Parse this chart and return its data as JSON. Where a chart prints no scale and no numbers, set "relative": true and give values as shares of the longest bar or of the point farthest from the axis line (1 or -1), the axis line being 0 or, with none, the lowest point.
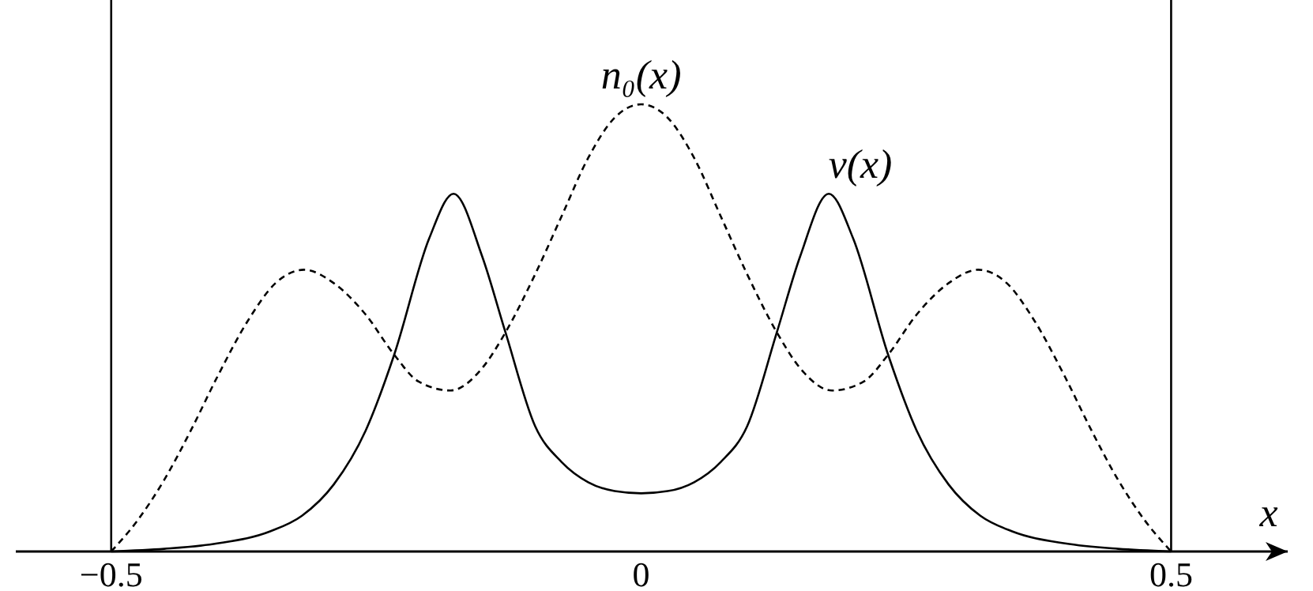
{
  "chart_data": {
    "type": "line",
    "relative": true,
    "xlabel": "x",
    "legend": false,
    "grid": false,
    "xlim": [
      -0.59,
      0.61
    ],
    "xticks": [
      {
        "value": -0.5,
        "label": "−0.5"
      },
      0,
      0.5
    ],
    "ref_lines": [
      {
        "axis": "x",
        "value": -0.5,
        "color": "#000000"
      },
      {
        "axis": "x",
        "value": 0.5,
        "color": "#000000"
      }
    ],
    "series": [
      {
        "name": "n₀(x)",
        "color": "#000000",
        "line_style": "dashed",
        "x": [
          -0.5,
          -0.475,
          -0.45,
          -0.425,
          -0.4,
          -0.37,
          -0.345,
          -0.318,
          -0.29,
          -0.26,
          -0.233,
          -0.21,
          -0.18,
          -0.15,
          -0.128,
          -0.1,
          -0.075,
          -0.05,
          -0.025,
          0,
          0.025,
          0.05,
          0.075,
          0.1,
          0.128,
          0.15,
          0.18,
          0.21,
          0.233,
          0.26,
          0.29,
          0.318,
          0.345,
          0.37,
          0.4,
          0.425,
          0.45,
          0.475,
          0.5
        ],
        "values": [
          0,
          0.07,
          0.16,
          0.27,
          0.39,
          0.52,
          0.6,
          0.63,
          0.6,
          0.53,
          0.44,
          0.38,
          0.36,
          0.41,
          0.49,
          0.62,
          0.75,
          0.88,
          0.97,
          1,
          0.97,
          0.88,
          0.75,
          0.62,
          0.49,
          0.41,
          0.36,
          0.38,
          0.44,
          0.53,
          0.6,
          0.63,
          0.6,
          0.52,
          0.39,
          0.27,
          0.16,
          0.07,
          0
        ]
      },
      {
        "name": "v(x)",
        "color": "#000000",
        "line_style": "solid",
        "x": [
          -0.5,
          -0.45,
          -0.4,
          -0.35,
          -0.32,
          -0.29,
          -0.26,
          -0.233,
          -0.2,
          -0.177,
          -0.15,
          -0.128,
          -0.1,
          -0.075,
          -0.05,
          -0.025,
          0,
          0.025,
          0.05,
          0.075,
          0.1,
          0.128,
          0.15,
          0.177,
          0.2,
          0.233,
          0.26,
          0.29,
          0.32,
          0.35,
          0.4,
          0.45,
          0.5
        ],
        "values": [
          0,
          0.006,
          0.018,
          0.045,
          0.08,
          0.15,
          0.27,
          0.44,
          0.7,
          0.8,
          0.66,
          0.49,
          0.28,
          0.2,
          0.155,
          0.135,
          0.13,
          0.135,
          0.155,
          0.2,
          0.28,
          0.49,
          0.66,
          0.8,
          0.7,
          0.44,
          0.27,
          0.15,
          0.08,
          0.045,
          0.018,
          0.006,
          0
        ]
      }
    ]
  }
}
